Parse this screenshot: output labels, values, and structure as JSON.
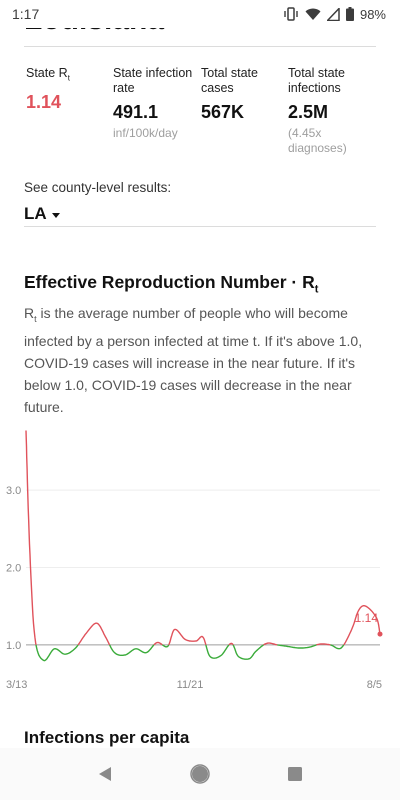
{
  "status_bar": {
    "time": "1:17",
    "battery": "98%"
  },
  "header": {
    "state_title": "Louisiana"
  },
  "stats": [
    {
      "label": "State R",
      "label_sub": "t",
      "value": "1.14",
      "note": ""
    },
    {
      "label": "State infection rate",
      "label_sub": "",
      "value": "491.1",
      "note": "inf/100k/day"
    },
    {
      "label": "Total state cases",
      "label_sub": "",
      "value": "567K",
      "note": ""
    },
    {
      "label": "Total state infections",
      "label_sub": "",
      "value": "2.5M",
      "note": "(4.45x diagnoses)"
    }
  ],
  "county": {
    "label": "See county-level results:",
    "selected": "LA"
  },
  "rt_section": {
    "title": "Effective Reproduction Number · R",
    "title_sub": "t",
    "desc_r": "R",
    "desc_sub": "t",
    "desc_rest": " is the average number of people who will become infected by a person infected at time t. If it's above 1.0, COVID-19 cases will increase in the near future. If it's below 1.0, COVID-19 cases will decrease in the near future."
  },
  "chart_data": {
    "type": "line",
    "x_tick_labels": [
      "3/13",
      "11/21",
      "8/5"
    ],
    "y_tick_labels": [
      "3.0",
      "2.0",
      "1.0"
    ],
    "ylim": [
      0.65,
      3.75
    ],
    "threshold": 1.0,
    "series": [
      {
        "x": [
          0,
          0.01,
          0.025,
          0.05,
          0.08,
          0.11,
          0.14,
          0.17,
          0.2,
          0.225,
          0.25,
          0.28,
          0.31,
          0.34,
          0.37,
          0.4,
          0.42,
          0.45,
          0.48,
          0.5,
          0.52,
          0.55,
          0.58,
          0.6,
          0.63,
          0.65,
          0.68,
          0.71,
          0.74,
          0.77,
          0.8,
          0.83,
          0.86,
          0.89,
          0.92,
          0.94,
          0.96,
          0.99,
          1.0
        ],
        "values": [
          3.77,
          2.3,
          1.1,
          0.8,
          0.95,
          0.88,
          0.96,
          1.15,
          1.28,
          1.1,
          0.9,
          0.87,
          0.95,
          0.9,
          1.03,
          0.98,
          1.2,
          1.07,
          1.05,
          1.1,
          0.85,
          0.86,
          1.02,
          0.85,
          0.82,
          0.92,
          1.02,
          1.0,
          0.98,
          0.96,
          0.97,
          1.01,
          1.0,
          0.96,
          1.2,
          1.45,
          1.5,
          1.35,
          1.14
        ]
      }
    ],
    "last_label": "1.14",
    "colors": {
      "above": "#e0525b",
      "below": "#3aab3a",
      "threshold": "#9e9e9e",
      "grid": "#eeeeee"
    }
  },
  "next_section": {
    "title": "Infections per capita"
  },
  "nav": {
    "back": "back-icon",
    "home": "home-icon",
    "recents": "recents-icon"
  }
}
